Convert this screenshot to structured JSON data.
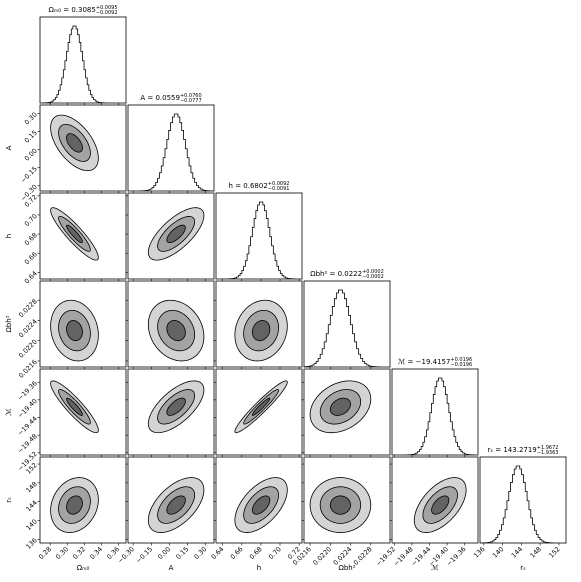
{
  "chart_data": {
    "type": "corner",
    "parameters": [
      {
        "label": "Ωₘ₀",
        "title": "Ωₘ₀ = 0.3085",
        "title_sup": "+0.0095",
        "title_sub": "−0.0092",
        "median": 0.3085,
        "err_plus": 0.0095,
        "err_minus": 0.0092,
        "lim": [
          0.268,
          0.369
        ],
        "ticks": [
          0.28,
          {
            "value": 0.3,
            "label": "0.30"
          },
          0.32,
          0.34,
          0.36
        ]
      },
      {
        "label": "A",
        "title": "A = 0.0559",
        "title_sup": "+0.0760",
        "title_sub": "−0.0777",
        "median": 0.0559,
        "err_plus": 0.076,
        "err_minus": 0.0777,
        "lim": [
          -0.343,
          0.37
        ],
        "ticks": [
          {
            "value": -0.3,
            "label": "−0.30"
          },
          {
            "value": -0.15,
            "label": "−0.15"
          },
          {
            "value": 0,
            "label": "0.00"
          },
          0.15,
          {
            "value": 0.3,
            "label": "0.30"
          }
        ]
      },
      {
        "label": "h",
        "title": "h = 0.6802",
        "title_sup": "+0.0092",
        "title_sub": "−0.0091",
        "median": 0.6802,
        "err_plus": 0.0092,
        "err_minus": 0.0091,
        "lim": [
          0.633,
          0.723
        ],
        "ticks": [
          0.64,
          0.66,
          0.68,
          {
            "value": 0.7,
            "label": "0.70"
          },
          0.72
        ]
      },
      {
        "label": "Ωbh²",
        "title": "Ωbh² = 0.0222",
        "title_sup": "+0.0002",
        "title_sub": "−0.0002",
        "median": 0.0222,
        "err_plus": 0.0002,
        "err_minus": 0.0002,
        "lim": [
          0.02148,
          0.02318
        ],
        "ticks": [
          0.0216,
          {
            "value": 0.022,
            "label": "0.0220"
          },
          0.0224,
          0.0228
        ]
      },
      {
        "label": "ℳ",
        "title": "ℳ = −19.4157",
        "title_sup": "+0.0196",
        "title_sub": "−0.0196",
        "median": -19.4157,
        "err_plus": 0.0196,
        "err_minus": 0.0196,
        "lim": [
          -19.525,
          -19.33
        ],
        "ticks": [
          {
            "value": -19.52,
            "label": "−19.52"
          },
          {
            "value": -19.48,
            "label": "−19.48"
          },
          {
            "value": -19.44,
            "label": "−19.44"
          },
          {
            "value": -19.4,
            "label": "−19.40"
          },
          {
            "value": -19.36,
            "label": "−19.36"
          }
        ]
      },
      {
        "label": "rₛ",
        "title": "rₛ = 143.2719",
        "title_sup": "+1.9672",
        "title_sub": "−1.9363",
        "median": 143.2719,
        "err_plus": 1.9672,
        "err_minus": 1.9363,
        "lim": [
          135.2,
          153.5
        ],
        "ticks": [
          136,
          140,
          144,
          148,
          152
        ]
      }
    ],
    "correlations": [
      [
        -0.55
      ],
      [
        -0.9,
        0.7
      ],
      [
        -0.15,
        -0.2,
        0.15
      ],
      [
        -0.9,
        0.65,
        0.95,
        0.3
      ],
      [
        0.2,
        0.55,
        0.55,
        0,
        0.55
      ]
    ],
    "contour_sigmas": [
      3,
      2,
      1
    ],
    "contour_colors": [
      "#d4d4d4",
      "#a3a3a3",
      "#636363"
    ],
    "line_color": "#000000"
  }
}
